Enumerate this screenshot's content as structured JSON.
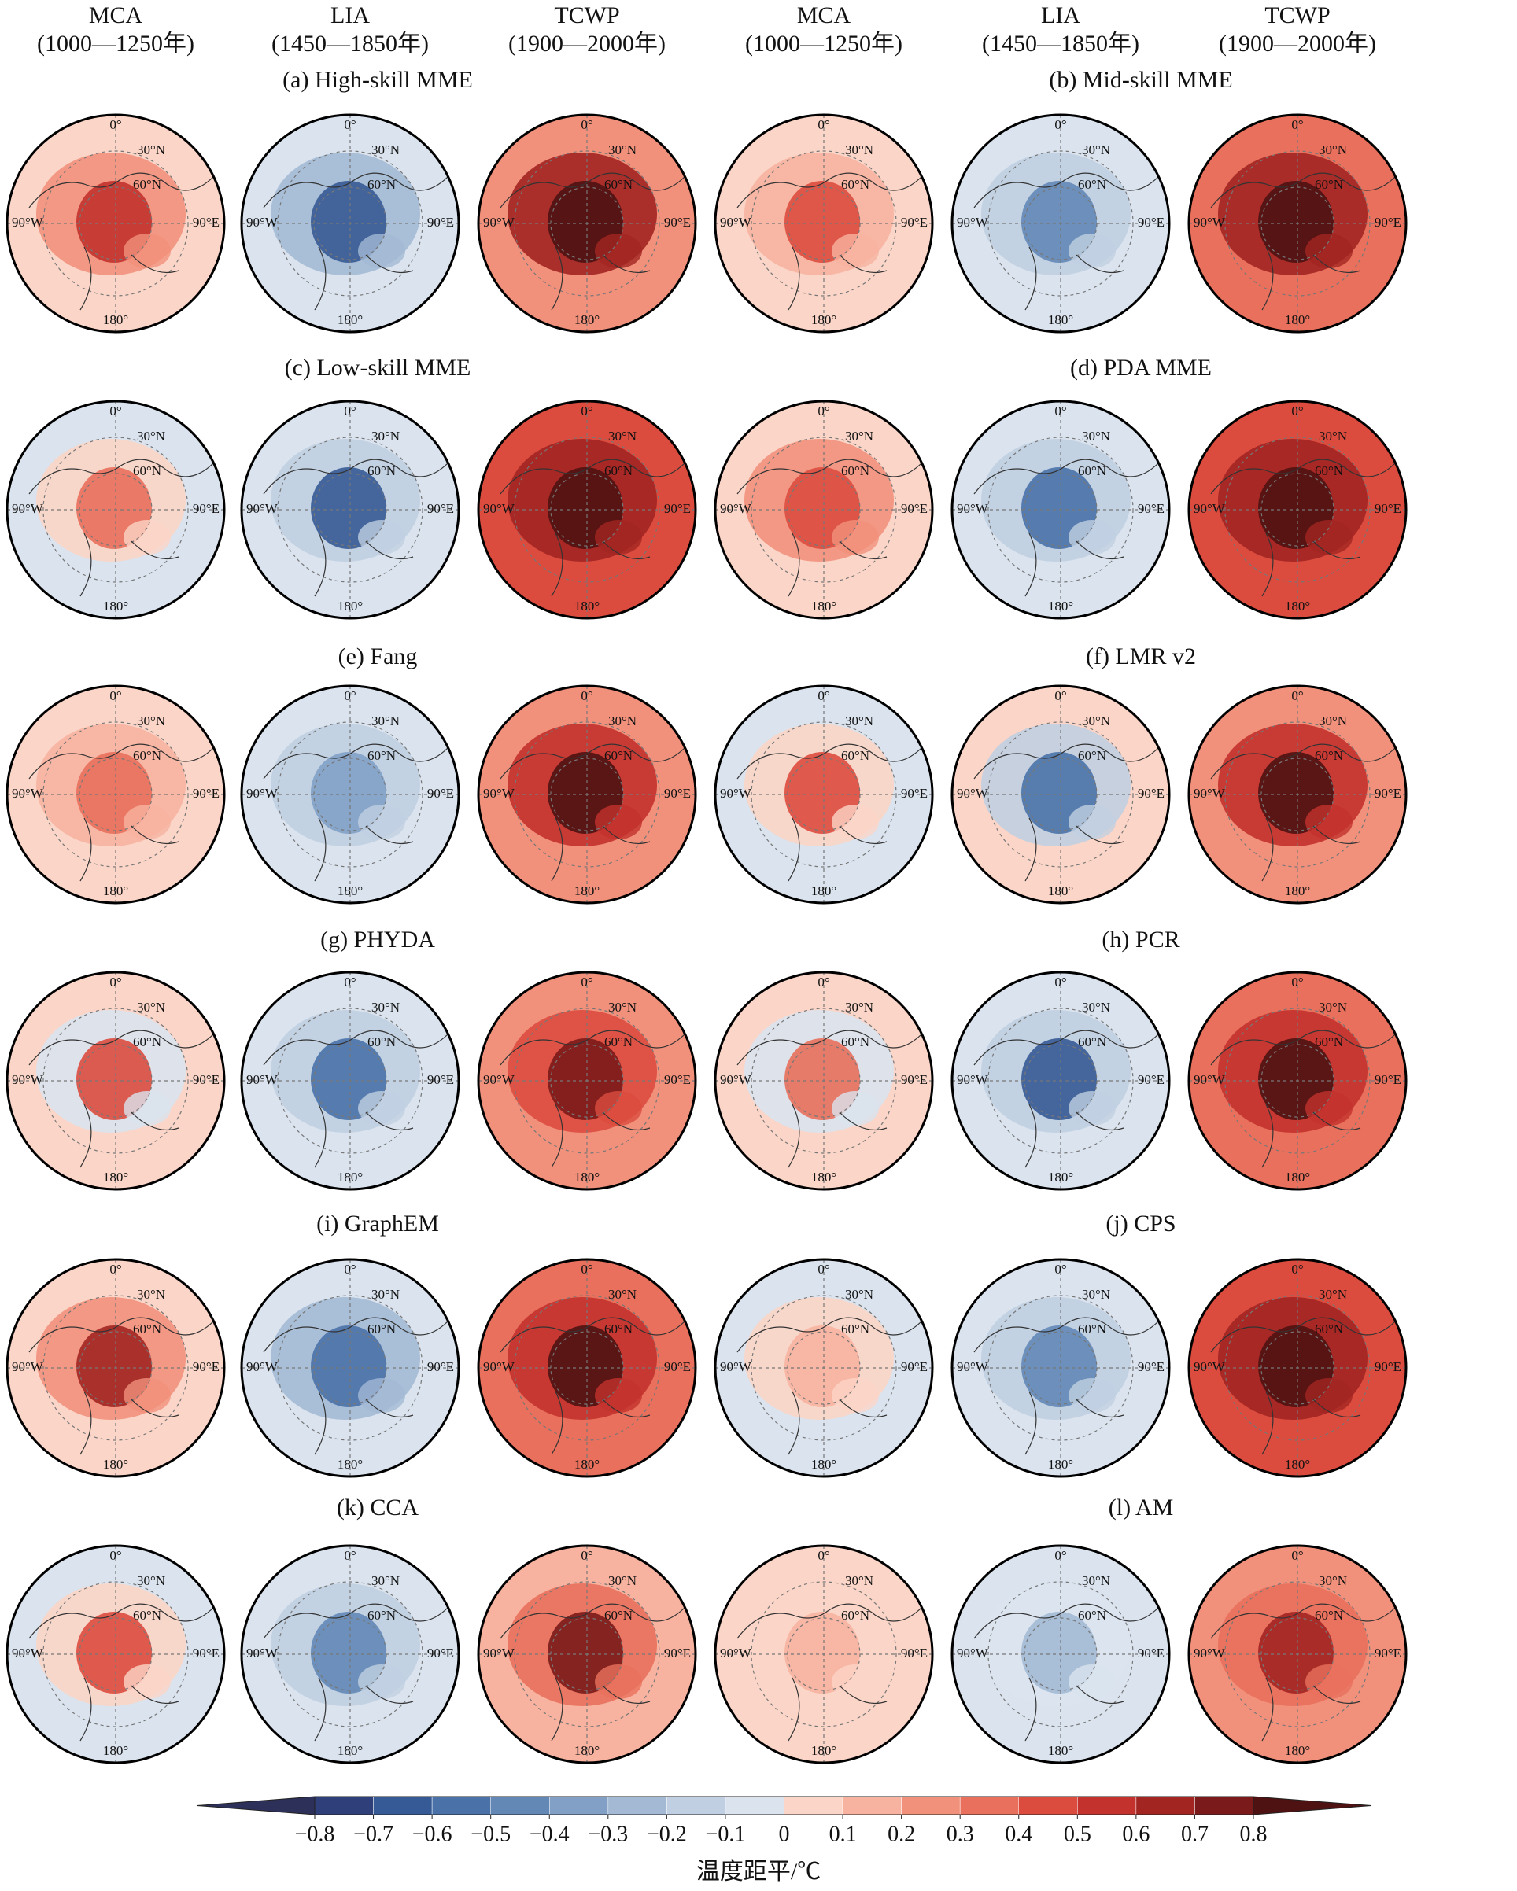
{
  "columns": [
    {
      "name": "MCA",
      "period": "(1000—1250年)"
    },
    {
      "name": "LIA",
      "period": "(1450—1850年)"
    },
    {
      "name": "TCWP",
      "period": "(1900—2000年)"
    },
    {
      "name": "MCA",
      "period": "(1000—1250年)"
    },
    {
      "name": "LIA",
      "period": "(1450—1850年)"
    },
    {
      "name": "TCWP",
      "period": "(1900—2000年)"
    }
  ],
  "panels": [
    "(a) High-skill MME",
    "(b) Mid-skill MME",
    "(c) Low-skill MME",
    "(d) PDA MME",
    "(e) Fang",
    "(f) LMR v2",
    "(g) PHYDA",
    "(h) PCR",
    "(i) GraphEM",
    "(j) CPS",
    "(k) CCA",
    "(l) AM"
  ],
  "map_labels": [
    "0°",
    "30°N",
    "60°N",
    "90°W",
    "90°E",
    "180°"
  ],
  "colorbar": {
    "ticks": [
      {
        "value": -0.8,
        "label": "−0.8"
      },
      {
        "value": -0.7,
        "label": "−0.7"
      },
      {
        "value": -0.6,
        "label": "−0.6"
      },
      {
        "value": -0.5,
        "label": "−0.5"
      },
      {
        "value": -0.4,
        "label": "−0.4"
      },
      {
        "value": -0.3,
        "label": "−0.3"
      },
      {
        "value": -0.2,
        "label": "−0.2"
      },
      {
        "value": -0.1,
        "label": "−0.1"
      },
      0,
      0.1,
      0.2,
      0.3,
      0.4,
      0.5,
      0.6,
      0.7,
      0.8
    ],
    "label": "温度距平/℃",
    "colors": [
      "#2d3059",
      "#2e3f7a",
      "#365a95",
      "#4a72a8",
      "#6388b6",
      "#82a0c6",
      "#a3b9d4",
      "#c0cfe1",
      "#dae3ee",
      "#fbd5c7",
      "#f7b3a0",
      "#f1917c",
      "#e8705c",
      "#db4c3f",
      "#c3322d",
      "#a22522",
      "#7a1a1a",
      "#4e1212"
    ]
  }
}
